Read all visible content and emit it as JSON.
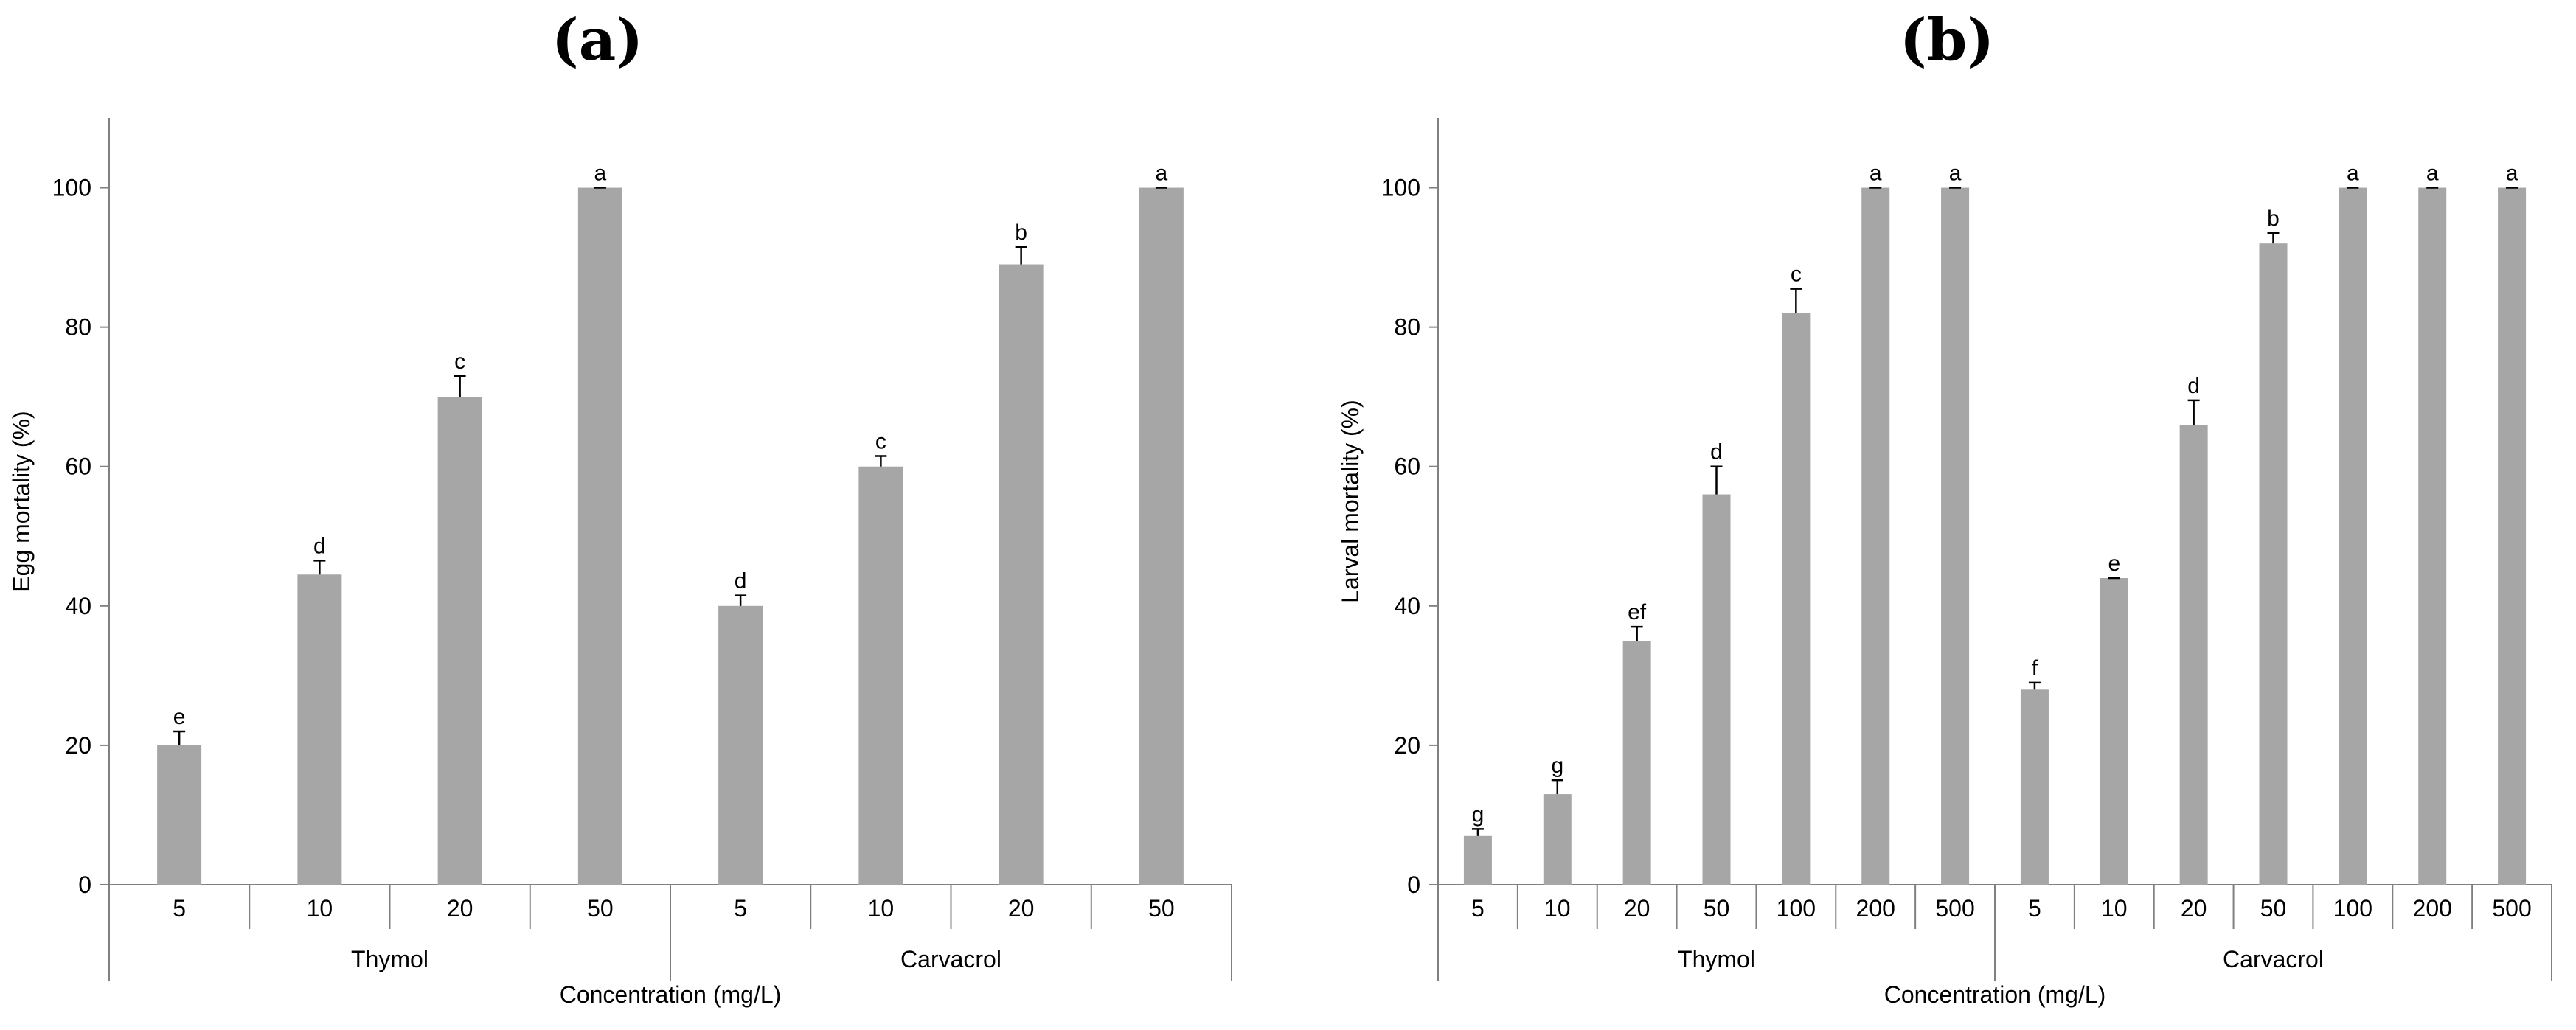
{
  "panels": {
    "a_title": "(a)",
    "b_title": "(b)"
  },
  "colors": {
    "bar": "#a6a6a6",
    "axis": "#808080",
    "error": "#000000"
  },
  "chart_data": [
    {
      "type": "bar",
      "title": "(a)",
      "xlabel": "Concentration (mg/L)",
      "ylabel": "Egg mortality (%)",
      "ylim": [
        0,
        110
      ],
      "yticks": [
        0,
        20,
        40,
        60,
        80,
        100
      ],
      "groups": [
        {
          "name": "Thymol",
          "categories": [
            "5",
            "10",
            "20",
            "50"
          ]
        },
        {
          "name": "Carvacrol",
          "categories": [
            "5",
            "10",
            "20",
            "50"
          ]
        }
      ],
      "values": [
        20,
        44.5,
        70,
        100,
        40,
        60,
        89,
        100
      ],
      "errors": [
        2,
        2,
        3,
        0,
        1.5,
        1.5,
        2.5,
        0
      ],
      "letters": [
        "e",
        "d",
        "c",
        "a",
        "d",
        "c",
        "b",
        "a"
      ],
      "grid": false
    },
    {
      "type": "bar",
      "title": "(b)",
      "xlabel": "Concentration (mg/L)",
      "ylabel": "Larval mortality (%)",
      "ylim": [
        0,
        110
      ],
      "yticks": [
        0,
        20,
        40,
        60,
        80,
        100
      ],
      "groups": [
        {
          "name": "Thymol",
          "categories": [
            "5",
            "10",
            "20",
            "50",
            "100",
            "200",
            "500"
          ]
        },
        {
          "name": "Carvacrol",
          "categories": [
            "5",
            "10",
            "20",
            "50",
            "100",
            "200",
            "500"
          ]
        }
      ],
      "values": [
        7,
        13,
        35,
        56,
        82,
        100,
        100,
        28,
        44,
        66,
        92,
        100,
        100,
        100
      ],
      "errors": [
        1,
        2,
        2,
        4,
        3.5,
        0,
        0,
        1,
        0,
        3.5,
        1.5,
        0,
        0,
        0
      ],
      "letters": [
        "g",
        "g",
        "ef",
        "d",
        "c",
        "a",
        "a",
        "f",
        "e",
        "d",
        "b",
        "a",
        "a",
        "a"
      ],
      "grid": false
    }
  ]
}
